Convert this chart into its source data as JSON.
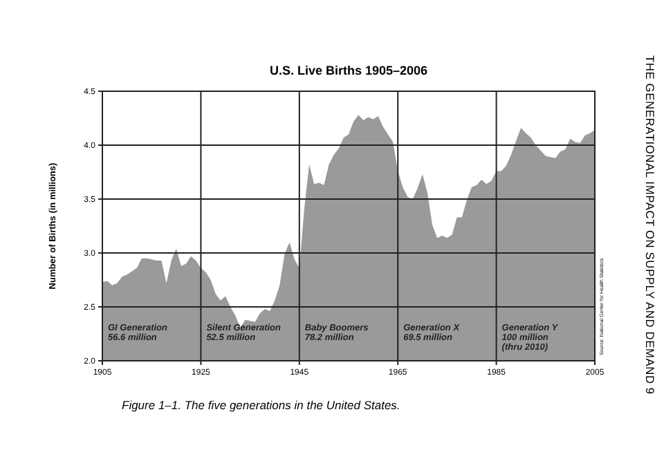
{
  "chart_data": {
    "type": "area",
    "title": "U.S. Live Births 1905–2006",
    "ylabel": "Number of Births (in millions)",
    "x": [
      1905,
      1906,
      1907,
      1908,
      1909,
      1910,
      1911,
      1912,
      1913,
      1914,
      1915,
      1916,
      1917,
      1918,
      1919,
      1920,
      1921,
      1922,
      1923,
      1924,
      1925,
      1926,
      1927,
      1928,
      1929,
      1930,
      1931,
      1932,
      1933,
      1934,
      1935,
      1936,
      1937,
      1938,
      1939,
      1940,
      1941,
      1942,
      1943,
      1944,
      1945,
      1946,
      1947,
      1948,
      1949,
      1950,
      1951,
      1952,
      1953,
      1954,
      1955,
      1956,
      1957,
      1958,
      1959,
      1960,
      1961,
      1962,
      1963,
      1964,
      1965,
      1966,
      1967,
      1968,
      1969,
      1970,
      1971,
      1972,
      1973,
      1974,
      1975,
      1976,
      1977,
      1978,
      1979,
      1980,
      1981,
      1982,
      1983,
      1984,
      1985,
      1986,
      1987,
      1988,
      1989,
      1990,
      1991,
      1992,
      1993,
      1994,
      1995,
      1996,
      1997,
      1998,
      1999,
      2000,
      2001,
      2002,
      2003,
      2004,
      2005
    ],
    "series": [
      {
        "color": "#9a9a9a",
        "values": [
          2.73,
          2.74,
          2.7,
          2.72,
          2.78,
          2.8,
          2.83,
          2.86,
          2.95,
          2.95,
          2.94,
          2.93,
          2.93,
          2.72,
          2.93,
          3.04,
          2.88,
          2.9,
          2.97,
          2.93,
          2.86,
          2.82,
          2.75,
          2.62,
          2.56,
          2.6,
          2.5,
          2.42,
          2.31,
          2.38,
          2.37,
          2.36,
          2.44,
          2.48,
          2.46,
          2.56,
          2.7,
          2.99,
          3.1,
          2.94,
          2.86,
          3.41,
          3.82,
          3.64,
          3.65,
          3.63,
          3.82,
          3.91,
          3.97,
          4.07,
          4.1,
          4.22,
          4.28,
          4.23,
          4.26,
          4.24,
          4.27,
          4.17,
          4.1,
          4.03,
          3.76,
          3.61,
          3.52,
          3.5,
          3.6,
          3.73,
          3.56,
          3.26,
          3.14,
          3.16,
          3.14,
          3.17,
          3.33,
          3.33,
          3.49,
          3.61,
          3.63,
          3.68,
          3.64,
          3.67,
          3.76,
          3.76,
          3.81,
          3.91,
          4.04,
          4.16,
          4.11,
          4.07,
          4.0,
          3.95,
          3.9,
          3.89,
          3.88,
          3.94,
          3.96,
          4.06,
          4.03,
          4.02,
          4.09,
          4.11,
          4.14
        ]
      }
    ],
    "xlim": [
      1905,
      2005
    ],
    "xticks": [
      1905,
      1925,
      1945,
      1965,
      1985,
      2005
    ],
    "ylim": [
      2,
      4.5
    ],
    "yticks": [
      {
        "value": 2,
        "label": "2.0"
      },
      {
        "value": 2.5,
        "label": "2.5"
      },
      {
        "value": 3,
        "label": "3.0"
      },
      {
        "value": 3.5,
        "label": "3.5"
      },
      {
        "value": 4,
        "label": "4.0"
      },
      {
        "value": 4.5,
        "label": "4.5"
      }
    ],
    "grid": true,
    "annotations": [
      "GI Generation\n56.6 million",
      "Silent Generation\n52.5 million",
      "Baby Boomers\n78.2 million",
      "Generation X\n69.5 million",
      "Generation Y\n100 million\n(thru 2010)",
      "Figure 1–1. The five generations in the United States.",
      "Source: National Center for Health Statistics",
      "THE GENERATIONAL IMPACT ON SUPPLY AND DEMAND 9"
    ]
  }
}
